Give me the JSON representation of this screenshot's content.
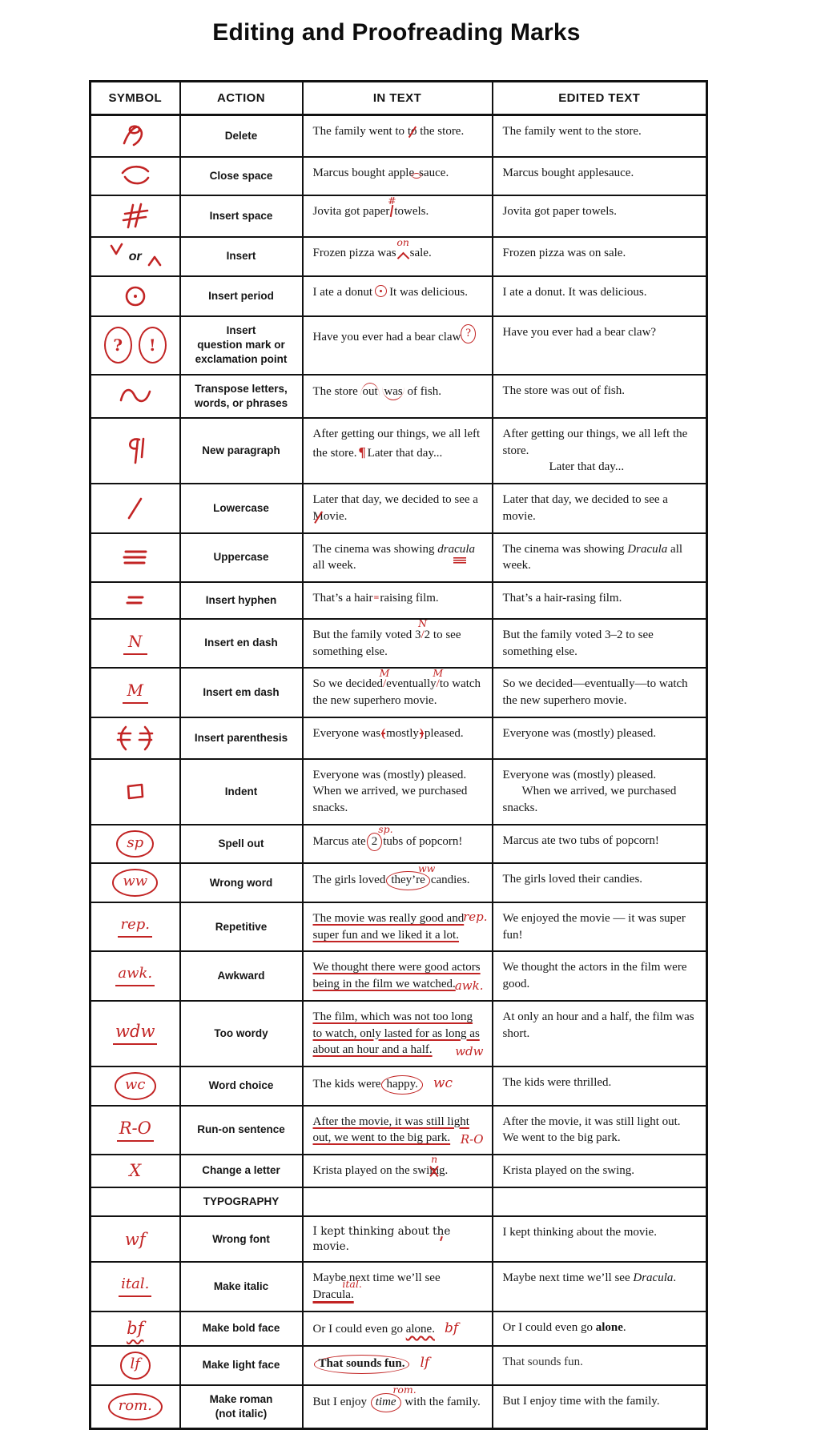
{
  "title": "Editing and Proofreading Marks",
  "colors": {
    "mark_red": "#c22424",
    "text": "#151515",
    "border": "#111111"
  },
  "table": {
    "headers": [
      "SYMBOL",
      "ACTION",
      "IN TEXT",
      "EDITED TEXT"
    ],
    "rows": [
      {
        "symbol": {
          "kind": "svg",
          "key": "deleatur"
        },
        "action": "Delete",
        "in_text": [
          {
            "t": "The family went to "
          },
          {
            "t": "to",
            "cls": "strike"
          },
          {
            "t": " the store."
          }
        ],
        "edited": [
          {
            "t": "The family went to the store."
          }
        ]
      },
      {
        "symbol": {
          "kind": "svg",
          "key": "close-up"
        },
        "action": "Close space",
        "in_text": [
          {
            "t": "Marcus bought apple"
          },
          {
            "t": "su",
            "cls": "arc-over"
          },
          {
            "t": "",
            "cls": "none"
          },
          {
            "t": "auce.",
            "hidden": "x"
          }
        ],
        "in_text_v2": true,
        "edited": [
          {
            "t": "Marcus bought applesauce."
          }
        ]
      },
      {
        "symbol": {
          "kind": "svg",
          "key": "insert-space-hash"
        },
        "action": "Insert space",
        "in_text": [
          {
            "t": "Jovita got paper"
          },
          {
            "t": "",
            "cls": "vline",
            "above": "#"
          },
          {
            "t": "towels."
          }
        ],
        "edited": [
          {
            "t": "Jovita got paper towels."
          }
        ]
      },
      {
        "symbol": {
          "kind": "insert-carets",
          "or_label": "or"
        },
        "action": "Insert",
        "in_text": [
          {
            "t": "Frozen pizza was"
          },
          {
            "t": "",
            "cls": "caret",
            "above": "on"
          },
          {
            "t": "sale."
          }
        ],
        "edited": [
          {
            "t": "Frozen pizza was on sale."
          }
        ]
      },
      {
        "symbol": {
          "kind": "svg",
          "key": "insert-period"
        },
        "action": "Insert period",
        "in_text": [
          {
            "t": "I ate a donut"
          },
          {
            "t": "",
            "cls": "pcirc"
          },
          {
            "t": "It was delicious."
          }
        ],
        "edited": [
          {
            "t": "I ate a donut. It was delicious."
          }
        ]
      },
      {
        "symbol": {
          "kind": "circled-pair",
          "items": [
            "?",
            "!"
          ]
        },
        "action": "Insert\nquestion mark or\nexclamation point",
        "in_text": [
          {
            "t": "Have you ever had a bear claw"
          },
          {
            "t": "?",
            "cls": "circ-red sup"
          }
        ],
        "edited": [
          {
            "t": "Have you ever had a bear claw?"
          }
        ]
      },
      {
        "symbol": {
          "kind": "svg",
          "key": "transpose-curve"
        },
        "action": "Transpose letters,\nwords, or phrases",
        "in_text": [
          {
            "t": "The store "
          },
          {
            "t": "out",
            "cls": "arc-over"
          },
          {
            "t": " "
          },
          {
            "t": "was",
            "cls": "arc-under"
          },
          {
            "t": " of fish."
          }
        ],
        "edited": [
          {
            "t": "The store was out of fish."
          }
        ]
      },
      {
        "symbol": {
          "kind": "svg",
          "key": "new-paragraph-pilcrow"
        },
        "action": "New paragraph",
        "in_text": [
          {
            "t": "After getting our things, we all left the store."
          },
          {
            "t": "¶",
            "cls": "rp"
          },
          {
            "t": "Later that day..."
          }
        ],
        "edited": [
          {
            "t": "After getting our things, we all left the store."
          },
          {
            "br": true
          },
          {
            "ind": 58
          },
          {
            "t": "Later that day..."
          }
        ]
      },
      {
        "symbol": {
          "kind": "svg",
          "key": "lowercase-slash"
        },
        "action": "Lowercase",
        "in_text": [
          {
            "t": "Later that day, we decided to see a "
          },
          {
            "t": "M",
            "cls": "strike"
          },
          {
            "t": "ovie."
          }
        ],
        "edited": [
          {
            "t": "Later that day, we decided to see a movie."
          }
        ]
      },
      {
        "symbol": {
          "kind": "svg",
          "key": "uppercase-triple-underline"
        },
        "action": "Uppercase",
        "in_text": [
          {
            "t": "The cinema was showing "
          },
          {
            "t": "dra",
            "cls": "i"
          },
          {
            "t": "cu",
            "cls": "i tul"
          },
          {
            "t": "la",
            "cls": "i"
          },
          {
            "t": " all week."
          }
        ],
        "edited": [
          {
            "t": "The cinema was showing "
          },
          {
            "t": "Dracula",
            "cls": "i"
          },
          {
            "t": " all week."
          }
        ]
      },
      {
        "symbol": {
          "kind": "svg",
          "key": "insert-hyphen"
        },
        "action": "Insert hyphen",
        "in_text": [
          {
            "t": "That’s a hair"
          },
          {
            "t": "=",
            "cls": "dh"
          },
          {
            "t": "raising film."
          }
        ],
        "edited": [
          {
            "t": "That’s a hair-rasing film."
          }
        ]
      },
      {
        "symbol": {
          "kind": "letter",
          "t": "N"
        },
        "action": "Insert en dash",
        "in_text": [
          {
            "t": "But the family voted 3"
          },
          {
            "t": "/",
            "cls": "red",
            "above": "N"
          },
          {
            "t": "2 to see something else."
          }
        ],
        "edited": [
          {
            "t": "But the family voted 3–2 to see something else."
          }
        ]
      },
      {
        "symbol": {
          "kind": "letter",
          "t": "M"
        },
        "action": "Insert em dash",
        "in_text": [
          {
            "t": "So we decided"
          },
          {
            "t": "/",
            "cls": "red",
            "above": "M"
          },
          {
            "t": "eventually"
          },
          {
            "t": "/",
            "cls": "red",
            "above": "M"
          },
          {
            "t": "to watch the new superhero movie."
          }
        ],
        "edited": [
          {
            "t": "So we decided—eventually—to watch the new superhero movie."
          }
        ]
      },
      {
        "symbol": {
          "kind": "svg",
          "key": "insert-parenthesis"
        },
        "action": "Insert parenthesis",
        "in_text": [
          {
            "t": "Everyone was"
          },
          {
            "t": "(",
            "cls": "rparen"
          },
          {
            "t": "mostly"
          },
          {
            "t": ")",
            "cls": "rparen"
          },
          {
            "t": "pleased."
          }
        ],
        "edited": [
          {
            "t": "Everyone was (mostly) pleased."
          }
        ]
      },
      {
        "symbol": {
          "kind": "svg",
          "key": "indent-box"
        },
        "action": "Indent",
        "in_text": [
          {
            "t": "Everyone was (mostly) pleased. When we arrived, we purchased snacks."
          }
        ],
        "edited": [
          {
            "t": "Everyone was (mostly) pleased."
          },
          {
            "br": true
          },
          {
            "ind": 24
          },
          {
            "t": "When we arrived, we purchased snacks."
          }
        ]
      },
      {
        "symbol": {
          "kind": "text",
          "t": "sp",
          "deco": "circle"
        },
        "action": "Spell out",
        "in_text": [
          {
            "t": "Marcus ate"
          },
          {
            "t": "2",
            "cls": "circ",
            "above": "sp.",
            "ap": "r"
          },
          {
            "t": "tubs of popcorn!"
          }
        ],
        "edited": [
          {
            "t": "Marcus ate two tubs of popcorn!"
          }
        ]
      },
      {
        "symbol": {
          "kind": "text",
          "t": "ww",
          "deco": "circle"
        },
        "action": "Wrong word",
        "in_text": [
          {
            "t": "The girls loved"
          },
          {
            "t": "they’re",
            "cls": "circ",
            "above": "ww",
            "ap": "r"
          },
          {
            "t": "candies."
          }
        ],
        "edited": [
          {
            "t": "The girls loved their candies."
          }
        ]
      },
      {
        "symbol": {
          "kind": "text",
          "t": "rep.",
          "deco": "ul"
        },
        "action": "Repetitive",
        "in_text": [
          {
            "t": "The movie was really good and super fun and we liked it a lot.",
            "cls": "redul"
          },
          {
            "t": "rep.",
            "note": "tr"
          }
        ],
        "edited": [
          {
            "t": "We enjoyed the movie — it was super fun!"
          }
        ]
      },
      {
        "symbol": {
          "kind": "text",
          "t": "awk.",
          "deco": "ul"
        },
        "action": "Awkward",
        "in_text": [
          {
            "t": "We thought there were good actors being in the film we watched.",
            "cls": "redul"
          },
          {
            "t": "awk.",
            "note": "br"
          }
        ],
        "edited": [
          {
            "t": "We thought the actors in the film were good."
          }
        ]
      },
      {
        "symbol": {
          "kind": "text",
          "t": "wdw",
          "deco": "ul",
          "big": true
        },
        "action": "Too wordy",
        "in_text": [
          {
            "t": "The film, which was not too long to watch, only lasted for as long as about an hour and a half.",
            "cls": "redul"
          },
          {
            "t": "wdw",
            "note": "br"
          }
        ],
        "edited": [
          {
            "t": "At only an hour and a half, the film was short."
          }
        ]
      },
      {
        "symbol": {
          "kind": "text",
          "t": "wc",
          "deco": "circle"
        },
        "action": "Word choice",
        "in_text": [
          {
            "t": "The kids were"
          },
          {
            "t": "happy.",
            "cls": "circ"
          },
          {
            "t": "wc",
            "cls": "rn big"
          }
        ],
        "edited": [
          {
            "t": "The kids were thrilled."
          }
        ]
      },
      {
        "symbol": {
          "kind": "text",
          "t": "R-O",
          "deco": "ul",
          "big": true
        },
        "action": "Run-on sentence",
        "in_text": [
          {
            "t": "After the movie, it was still light out, we went to the big park.",
            "cls": "redul"
          },
          {
            "t": "R-O",
            "note": "br"
          }
        ],
        "edited": [
          {
            "t": "After the movie, it was still light out. We went to the big park."
          }
        ]
      },
      {
        "symbol": {
          "kind": "text",
          "t": "X",
          "deco": "plain",
          "big": true
        },
        "action": "Change a letter",
        "in_text": [
          {
            "t": "Krista played on the swi"
          },
          {
            "t": "m",
            "cls": "xstrike",
            "above": "n"
          },
          {
            "t": "g."
          }
        ],
        "edited": [
          {
            "t": "Krista played on the swing."
          }
        ]
      },
      {
        "symbol": {
          "kind": "none"
        },
        "action": "TYPOGRAPHY",
        "in_text": [],
        "edited": []
      },
      {
        "symbol": {
          "kind": "text",
          "t": "wf",
          "deco": "plain",
          "big": true
        },
        "action": "Wrong font",
        "in_cls": "font2",
        "in_text": [
          {
            "t": "I kept thinking about "
          },
          {
            "t": "the",
            "cls": "undertick"
          },
          {
            "t": " movie."
          }
        ],
        "edited": [
          {
            "t": "I kept thinking about the movie."
          }
        ]
      },
      {
        "symbol": {
          "kind": "text",
          "t": "ital.",
          "deco": "ul"
        },
        "action": "Make italic",
        "in_text": [
          {
            "t": "Maybe next time we’ll see "
          },
          {
            "t": "Dracula.",
            "cls": "redul2",
            "above": "ital.",
            "ap": "r"
          }
        ],
        "edited": [
          {
            "t": "Maybe next time we’ll see "
          },
          {
            "t": "Dracula",
            "cls": "i"
          },
          {
            "t": "."
          }
        ]
      },
      {
        "symbol": {
          "kind": "text",
          "t": "bf",
          "deco": "wavy",
          "big": true
        },
        "action": "Make bold face",
        "in_text": [
          {
            "t": "Or I could even go "
          },
          {
            "t": "alone.",
            "cls": "wavy"
          },
          {
            "t": "bf",
            "cls": "rn big"
          }
        ],
        "edited": [
          {
            "t": "Or I could even go "
          },
          {
            "t": "alone",
            "cls": "b"
          },
          {
            "t": "."
          }
        ]
      },
      {
        "symbol": {
          "kind": "text",
          "t": "lf",
          "deco": "circle"
        },
        "action": "Make light face",
        "in_text": [
          {
            "t": "That sounds fun.",
            "cls": "b circ"
          },
          {
            "t": "lf",
            "cls": "rn big"
          }
        ],
        "edited": [
          {
            "t": "That sounds fun.",
            "cls": "light"
          }
        ]
      },
      {
        "symbol": {
          "kind": "text",
          "t": "rom.",
          "deco": "circle"
        },
        "action": "Make roman\n(not italic)",
        "in_text": [
          {
            "t": "But I enjoy "
          },
          {
            "t": "time",
            "cls": "i circ",
            "above": "rom.",
            "ap": "r"
          },
          {
            "t": " with the family."
          }
        ],
        "edited": [
          {
            "t": "But I enjoy time with the family."
          }
        ]
      }
    ]
  }
}
